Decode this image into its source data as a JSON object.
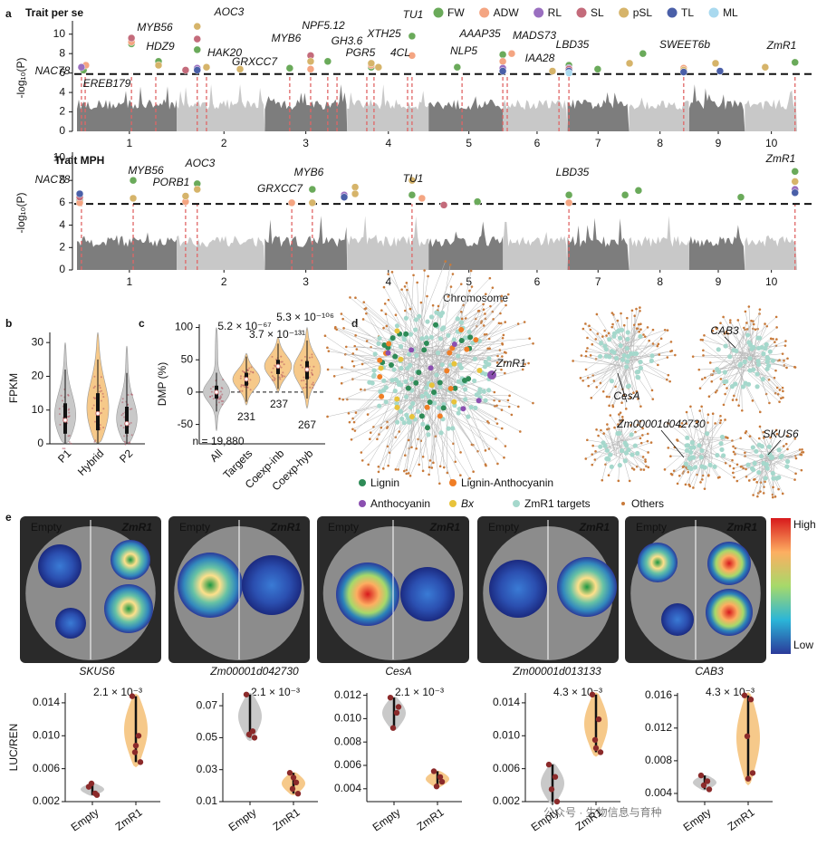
{
  "panel_labels": [
    "a",
    "b",
    "c",
    "d",
    "e"
  ],
  "chart_data": [
    {
      "type": "manhattan",
      "title": "Trait per se",
      "ylabel": "-log₁₀(P)",
      "xlim": [
        0,
        2102
      ],
      "xticks": [
        {
          "value": 153,
          "label": "1"
        },
        {
          "value": 429,
          "label": "2"
        },
        {
          "value": 668,
          "label": "3"
        },
        {
          "value": 909,
          "label": "4"
        },
        {
          "value": 1144,
          "label": "5"
        },
        {
          "value": 1343,
          "label": "6"
        },
        {
          "value": 1521,
          "label": "7"
        },
        {
          "value": 1702,
          "label": "8"
        },
        {
          "value": 1872,
          "label": "9"
        },
        {
          "value": 2027,
          "label": "10"
        }
      ],
      "ylim": [
        0,
        11
      ],
      "yticks": [
        0,
        2,
        4,
        6,
        8,
        10
      ],
      "threshold": 5.9,
      "legend": "top-right",
      "series": [
        {
          "name": "FW",
          "color": "#6aaa5a",
          "x": [
            19,
            159,
            238,
            351,
            621,
            732,
            859,
            978,
            1110,
            1243,
            1436,
            1520,
            1652,
            2096
          ],
          "values": [
            6.3,
            9.0,
            7.2,
            8.4,
            6.5,
            7.2,
            6.6,
            9.8,
            6.6,
            7.9,
            6.8,
            6.4,
            8.0,
            7.1
          ]
        },
        {
          "name": "ADW",
          "color": "#f4a582",
          "x": [
            26,
            159,
            682,
            859,
            978,
            1243,
            1269,
            1771
          ],
          "values": [
            6.8,
            9.2,
            6.4,
            6.8,
            7.8,
            7.2,
            8.0,
            6.5
          ]
        },
        {
          "name": "RL",
          "color": "#9a6fc0",
          "x": [
            13,
            351,
            1243,
            1436
          ],
          "values": [
            6.6,
            6.5,
            6.5,
            6.5
          ]
        },
        {
          "name": "SL",
          "color": "#c46b7b",
          "x": [
            159,
            317,
            351,
            682,
            1436
          ],
          "values": [
            9.6,
            6.3,
            9.5,
            7.8,
            6.4
          ]
        },
        {
          "name": "pSL",
          "color": "#d6b46a",
          "x": [
            238,
            351,
            378,
            476,
            682,
            859,
            880,
            1388,
            1613,
            1771,
            1864,
            2009
          ],
          "values": [
            6.8,
            10.8,
            6.6,
            6.4,
            7.2,
            7.0,
            6.6,
            6.2,
            7.0,
            6.3,
            7.0,
            6.6
          ]
        },
        {
          "name": "TL",
          "color": "#4a5fa8",
          "x": [
            351,
            1243,
            1436,
            1771,
            1877
          ],
          "values": [
            6.3,
            6.2,
            6.2,
            6.1,
            6.2
          ]
        },
        {
          "name": "ML",
          "color": "#a9d9ef",
          "x": [
            1436
          ],
          "values": [
            6.0
          ]
        }
      ],
      "genes": [
        {
          "name": "NAC78",
          "x": 13,
          "color": "#4caf50"
        },
        {
          "name": "EREB179",
          "x": 24,
          "color": "#1a1a1a"
        },
        {
          "name": "MYB56",
          "x": 159,
          "color": "#4caf50"
        },
        {
          "name": "HDZ9",
          "x": 230,
          "color": "#1a1a1a"
        },
        {
          "name": "AOC3",
          "x": 351,
          "color": "#4caf50"
        },
        {
          "name": "HAK20",
          "x": 378,
          "color": "#1a1a1a"
        },
        {
          "name": "GRXCC7",
          "x": 621,
          "color": "#4caf50"
        },
        {
          "name": "MYB6",
          "x": 682,
          "color": "#4caf50"
        },
        {
          "name": "NPF5.12",
          "x": 732,
          "color": "#1a1a1a"
        },
        {
          "name": "GH3.6",
          "x": 759,
          "color": "#1a1a1a"
        },
        {
          "name": "PGR5",
          "x": 846,
          "color": "#1a1a1a"
        },
        {
          "name": "XTH25",
          "x": 867,
          "color": "#1a1a1a"
        },
        {
          "name": "4CL",
          "x": 965,
          "color": "#1a1a1a"
        },
        {
          "name": "TU1",
          "x": 978,
          "color": "#4caf50"
        },
        {
          "name": "NLP5",
          "x": 1124,
          "color": "#1a1a1a"
        },
        {
          "name": "AAAP35",
          "x": 1243,
          "color": "#1a1a1a"
        },
        {
          "name": "MADS73",
          "x": 1256,
          "color": "#1a1a1a"
        },
        {
          "name": "IAA28",
          "x": 1407,
          "color": "#1a1a1a"
        },
        {
          "name": "LBD35",
          "x": 1436,
          "color": "#4caf50"
        },
        {
          "name": "SWEET6b",
          "x": 1771,
          "color": "#1a1a1a"
        },
        {
          "name": "ZmR1",
          "x": 2096,
          "color": "#4caf50"
        }
      ]
    },
    {
      "type": "manhattan",
      "title": "Trait MPH",
      "ylabel": "-log₁₀(P)",
      "xlabel": "Chromosome",
      "xlim": [
        0,
        2102
      ],
      "xticks": [
        {
          "value": 153,
          "label": "1"
        },
        {
          "value": 429,
          "label": "2"
        },
        {
          "value": 668,
          "label": "3"
        },
        {
          "value": 909,
          "label": "4"
        },
        {
          "value": 1144,
          "label": "5"
        },
        {
          "value": 1343,
          "label": "6"
        },
        {
          "value": 1521,
          "label": "7"
        },
        {
          "value": 1702,
          "label": "8"
        },
        {
          "value": 1872,
          "label": "9"
        },
        {
          "value": 2027,
          "label": "10"
        }
      ],
      "ylim": [
        0,
        10.2
      ],
      "yticks": [
        0,
        2,
        4,
        6,
        8,
        10
      ],
      "threshold": 5.9,
      "series": [
        {
          "name": "FW",
          "color": "#6aaa5a",
          "x": [
            8,
            164,
            351,
            687,
            978,
            1169,
            1436,
            1600,
            1639,
            1938,
            2096
          ],
          "values": [
            6.2,
            8.0,
            7.7,
            7.2,
            6.7,
            6.1,
            6.7,
            6.7,
            7.1,
            6.5,
            8.8
          ]
        },
        {
          "name": "ADW",
          "color": "#f4a582",
          "x": [
            8,
            317,
            627,
            1007,
            1436
          ],
          "values": [
            6.0,
            6.1,
            6.0,
            6.4,
            6.0
          ]
        },
        {
          "name": "RL",
          "color": "#9a6fc0",
          "x": [
            780,
            2096
          ],
          "values": [
            6.7,
            7.2
          ]
        },
        {
          "name": "SL",
          "color": "#c46b7b",
          "x": [
            8,
            1071
          ],
          "values": [
            6.5,
            5.8
          ]
        },
        {
          "name": "pSL",
          "color": "#d6b46a",
          "x": [
            164,
            317,
            351,
            687,
            812,
            812,
            978,
            2096
          ],
          "values": [
            6.4,
            6.6,
            7.2,
            6.0,
            7.4,
            6.8,
            8.0,
            7.9
          ]
        },
        {
          "name": "TL",
          "color": "#4a5fa8",
          "x": [
            8,
            780,
            2096
          ],
          "values": [
            6.8,
            6.5,
            6.9
          ]
        }
      ],
      "genes": [
        {
          "name": "NAC78",
          "x": 13,
          "color": "#4caf50"
        },
        {
          "name": "MYB56",
          "x": 164,
          "color": "#4caf50"
        },
        {
          "name": "PORB1",
          "x": 317,
          "color": "#1a1a1a"
        },
        {
          "name": "AOC3",
          "x": 351,
          "color": "#4caf50"
        },
        {
          "name": "GRXCC7",
          "x": 627,
          "color": "#4caf50"
        },
        {
          "name": "MYB6",
          "x": 687,
          "color": "#4caf50"
        },
        {
          "name": "TU1",
          "x": 978,
          "color": "#4caf50"
        },
        {
          "name": "LBD35",
          "x": 1436,
          "color": "#4caf50"
        },
        {
          "name": "ZmR1",
          "x": 2096,
          "color": "#4caf50"
        }
      ]
    },
    {
      "type": "violin",
      "ylabel": "FPKM",
      "categories": [
        "P1",
        "Hybrid",
        "P2"
      ],
      "colors": [
        "#c9c9c9",
        "#f6c98a",
        "#c9c9c9"
      ],
      "ylim": [
        0,
        33
      ],
      "yticks": [
        0,
        10,
        20,
        30
      ],
      "violin_min": [
        0,
        0,
        0
      ],
      "violin_max": [
        30,
        33,
        29
      ],
      "median": [
        7,
        9,
        6
      ],
      "q1": [
        3,
        4,
        3
      ],
      "q3": [
        12,
        15,
        11
      ],
      "whisker_low": [
        0,
        0,
        0
      ],
      "whisker_high": [
        22,
        25,
        21
      ]
    },
    {
      "type": "violin",
      "ylabel": "DMP (%)",
      "categories": [
        "All",
        "Targets",
        "Coexp-inb",
        "Coexp-hyb"
      ],
      "colors": [
        "#c9c9c9",
        "#f6c98a",
        "#f6c98a",
        "#f6c98a"
      ],
      "ylim": [
        -80,
        105
      ],
      "yticks": [
        -50,
        0,
        50,
        100
      ],
      "reference_line": 0,
      "violin_min": [
        -60,
        -20,
        0,
        -25
      ],
      "violin_max": [
        100,
        60,
        85,
        100
      ],
      "median": [
        0,
        20,
        40,
        35
      ],
      "q1": [
        -10,
        10,
        28,
        20
      ],
      "q3": [
        10,
        30,
        50,
        48
      ],
      "whisker_low": [
        -30,
        -15,
        5,
        -10
      ],
      "whisker_high": [
        30,
        55,
        75,
        80
      ],
      "annotations": [
        "5.2 × 10⁻⁶⁷",
        "3.7 × 10⁻¹³¹",
        "5.3 × 10⁻¹⁰⁶",
        "n = 19,880",
        "231",
        "237",
        "267"
      ]
    },
    {
      "type": "violin-points",
      "title": "SKUS6",
      "ylabel": "LUC/REN",
      "annotation": "2.1 × 10⁻³",
      "categories": [
        "Empty",
        "ZmR1"
      ],
      "colors": [
        "#c9c9c9",
        "#f6c98a"
      ],
      "ylim": [
        0.002,
        0.0152
      ],
      "yticks": [
        0.002,
        0.006,
        {
          "value": 0.01,
          "label": "0.010"
        },
        0.014
      ],
      "values": [
        [
          0.0038,
          0.003,
          0.0042,
          0.0028
        ],
        [
          0.0148,
          0.01,
          0.008,
          0.0068,
          0.0088
        ]
      ]
    },
    {
      "type": "violin-points",
      "title": "Zm00001d042730",
      "annotation": "2.1 × 10⁻³",
      "categories": [
        "Empty",
        "ZmR1"
      ],
      "colors": [
        "#c9c9c9",
        "#f6c98a"
      ],
      "ylim": [
        0.01,
        0.078
      ],
      "yticks": [
        0.01,
        0.03,
        0.05,
        0.07
      ],
      "values": [
        [
          0.077,
          0.054,
          0.052,
          0.05
        ],
        [
          0.028,
          0.022,
          0.018,
          0.015,
          0.025
        ]
      ]
    },
    {
      "type": "violin-points",
      "title": "CesA",
      "annotation": "2.1 × 10⁻³",
      "categories": [
        "Empty",
        "ZmR1"
      ],
      "colors": [
        "#c9c9c9",
        "#f6c98a"
      ],
      "ylim": [
        0.0029,
        0.0122
      ],
      "yticks": [
        0.004,
        0.006,
        0.008,
        {
          "value": 0.01,
          "label": "0.010"
        },
        0.012
      ],
      "values": [
        [
          0.0118,
          0.0105,
          0.0092,
          0.011
        ],
        [
          0.0055,
          0.005,
          0.0042,
          0.0046
        ]
      ]
    },
    {
      "type": "violin-points",
      "title": "Zm00001d013133",
      "annotation": "4.3 × 10⁻³",
      "categories": [
        "Empty",
        "ZmR1"
      ],
      "colors": [
        "#c9c9c9",
        "#f6c98a"
      ],
      "ylim": [
        0.002,
        0.0152
      ],
      "yticks": [
        0.002,
        0.006,
        {
          "value": 0.01,
          "label": "0.010"
        },
        0.014
      ],
      "values": [
        [
          0.0065,
          0.005,
          0.0035,
          0.002
        ],
        [
          0.015,
          0.012,
          0.0095,
          0.008,
          0.0085
        ]
      ]
    },
    {
      "type": "violin-points",
      "title": "CAB3",
      "annotation": "4.3 × 10⁻³",
      "categories": [
        "Empty",
        "ZmR1"
      ],
      "colors": [
        "#c9c9c9",
        "#f6c98a"
      ],
      "ylim": [
        0.003,
        0.0163
      ],
      "yticks": [
        0.004,
        0.008,
        0.012,
        0.016
      ],
      "values": [
        [
          0.0062,
          0.0055,
          0.005,
          0.0045
        ],
        [
          0.016,
          0.0155,
          0.011,
          0.0065,
          0.0058
        ]
      ]
    }
  ],
  "network": {
    "legend": [
      {
        "label": "Lignin",
        "color": "#2e8b57"
      },
      {
        "label": "Lignin-Anthocyanin",
        "color": "#f07e26"
      },
      {
        "label": "Anthocyanin",
        "color": "#8b4fb0"
      },
      {
        "label": "Bx",
        "color": "#e8c33b"
      },
      {
        "label": "ZmR1 targets",
        "color": "#a5d8cc"
      },
      {
        "label": "Others",
        "color": "#c87a3a"
      }
    ],
    "labels": [
      "ZmR1",
      "CesA",
      "CAB3",
      "Zm00001d042730",
      "SKUS6"
    ]
  },
  "luciferase_panels": [
    {
      "left": "Empty",
      "right": "ZmR1"
    },
    {
      "left": "Empty",
      "right": "ZmR1"
    },
    {
      "left": "Empty",
      "right": "ZmR1"
    },
    {
      "left": "Empty",
      "right": "ZmR1"
    },
    {
      "left": "Empty",
      "right": "ZmR1"
    }
  ],
  "colorbar": {
    "high": "High",
    "low": "Low"
  },
  "watermark": "公众号 · 生物信息与育种"
}
